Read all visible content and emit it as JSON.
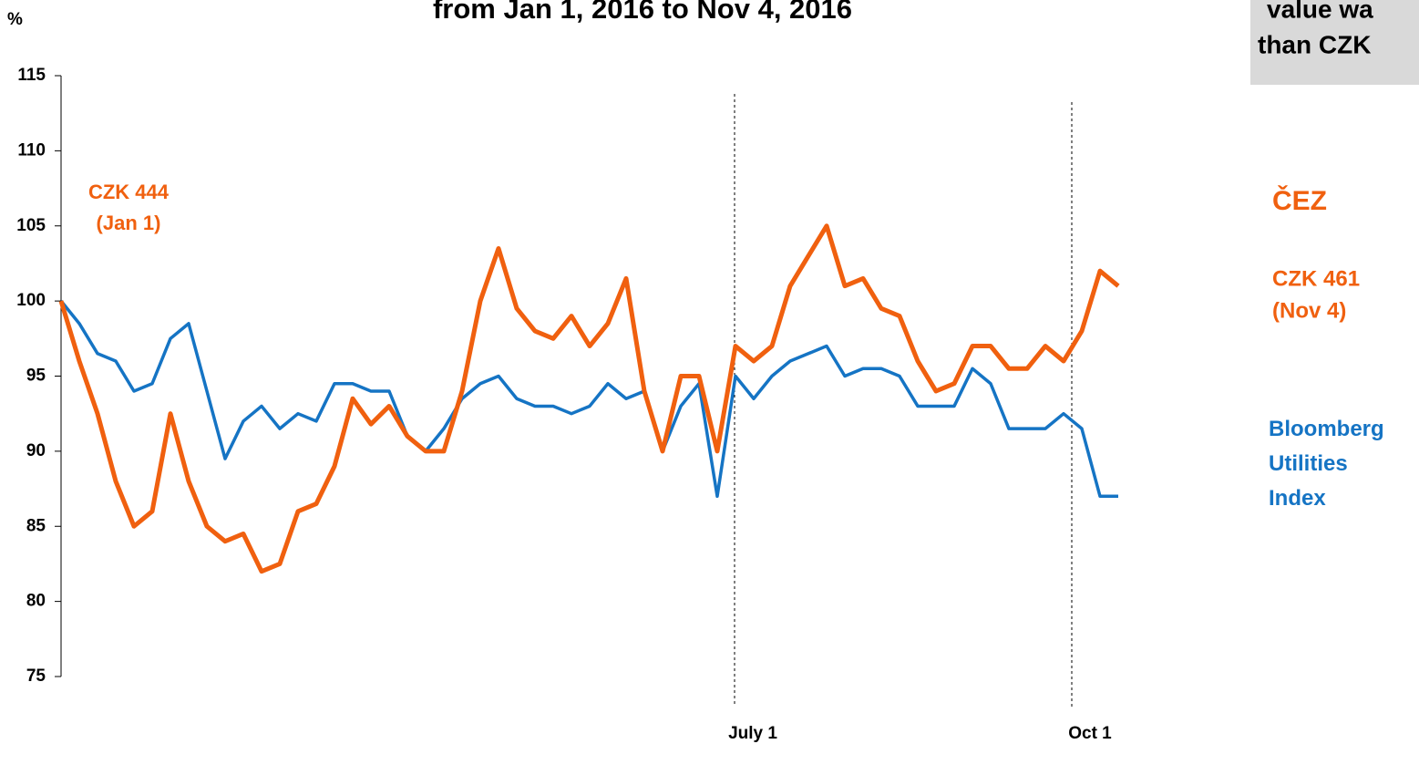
{
  "chart_data": {
    "type": "line",
    "title": "from Jan 1, 2016 to Nov 4, 2016",
    "y_label": "%",
    "box_text": [
      "value wa",
      "than CZK"
    ],
    "annotations": {
      "start": [
        "CZK 444",
        "(Jan 1)"
      ],
      "end": [
        "CZK 461",
        "(Nov 4)"
      ]
    },
    "x": [
      0,
      1,
      2,
      3,
      4,
      5,
      6,
      7,
      8,
      9,
      10,
      11,
      12,
      13,
      14,
      15,
      16,
      17,
      18,
      19,
      20,
      21,
      22,
      23,
      24,
      25,
      26,
      27,
      28,
      29,
      30,
      31,
      32,
      33,
      34,
      35,
      36,
      37,
      38,
      39,
      40,
      41,
      42,
      43,
      44,
      45,
      46,
      47,
      48,
      49,
      50,
      51,
      52,
      53,
      54,
      55,
      56,
      57,
      58
    ],
    "xlim": [
      0,
      58
    ],
    "xticks": [
      {
        "value": 36.95,
        "label": "July 1"
      },
      {
        "value": 55.45,
        "label": "Oct 1"
      }
    ],
    "ylim": [
      75,
      115
    ],
    "yticks": [
      75,
      80,
      85,
      90,
      95,
      100,
      105,
      110,
      115
    ],
    "series": [
      {
        "name": "ČEZ",
        "color": "#f0600f",
        "values": [
          100,
          96,
          92.5,
          88,
          85,
          86,
          92.5,
          88,
          85,
          84,
          84.5,
          82,
          82.5,
          86,
          86.5,
          89,
          93.5,
          91.8,
          93,
          91,
          90,
          90,
          94,
          100,
          103.5,
          99.5,
          98,
          97.5,
          99,
          97,
          98.5,
          101.5,
          94,
          90,
          95,
          95,
          90,
          97,
          96,
          97,
          101,
          103,
          105,
          101,
          101.5,
          99.5,
          99,
          96,
          94,
          94.5,
          97,
          97,
          95.5,
          95.5,
          97,
          96,
          98,
          102,
          101
        ]
      },
      {
        "name": "Bloomberg Utilities Index",
        "color": "#1574c4",
        "values": [
          100,
          98.5,
          96.5,
          96,
          94,
          94.5,
          97.5,
          98.5,
          94,
          89.5,
          92,
          93,
          91.5,
          92.5,
          92,
          94.5,
          94.5,
          94,
          94,
          91,
          90,
          91.5,
          93.5,
          94.5,
          95,
          93.5,
          93,
          93,
          92.5,
          93,
          94.5,
          93.5,
          94,
          90,
          93,
          94.5,
          87,
          95,
          93.5,
          95,
          96,
          96.5,
          97,
          95,
          95.5,
          95.5,
          95,
          93,
          93,
          93,
          95.5,
          94.5,
          91.5,
          91.5,
          91.5,
          92.5,
          91.5,
          87,
          87
        ]
      }
    ]
  }
}
